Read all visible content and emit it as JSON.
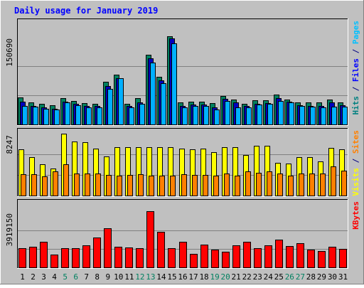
{
  "chart_data": {
    "type": "bar",
    "title": "Daily usage for January 2019",
    "categories": [
      "1",
      "2",
      "3",
      "4",
      "5",
      "6",
      "7",
      "8",
      "9",
      "10",
      "11",
      "12",
      "13",
      "14",
      "15",
      "16",
      "17",
      "18",
      "19",
      "20",
      "21",
      "22",
      "23",
      "24",
      "25",
      "26",
      "27",
      "28",
      "29",
      "30",
      "31"
    ],
    "weekend_days": [
      "5",
      "6",
      "12",
      "13",
      "19",
      "20",
      "26",
      "27"
    ],
    "panels": [
      {
        "id": "hits",
        "max_label": "150690",
        "ymax": 150690,
        "right_label_parts": [
          {
            "text": "Pages",
            "color": "#00c0ff"
          },
          {
            "text": " / ",
            "color": "#000080"
          },
          {
            "text": "Files",
            "color": "#0000ff"
          },
          {
            "text": " / ",
            "color": "#000080"
          },
          {
            "text": "Hits",
            "color": "#008080"
          }
        ],
        "series": [
          {
            "name": "Hits",
            "color": "#008060",
            "values": [
              47000,
              38000,
              36000,
              34000,
              46000,
              41000,
              37000,
              36000,
              73000,
              85000,
              36000,
              46000,
              119000,
              82000,
              151000,
              38000,
              40000,
              40000,
              37000,
              50000,
              44000,
              36000,
              42000,
              42000,
              52000,
              44000,
              39000,
              39000,
              38000,
              43000,
              38000
            ]
          },
          {
            "name": "Files",
            "color": "#0000c0",
            "values": [
              40000,
              33000,
              30000,
              28000,
              40000,
              36000,
              33000,
              32000,
              66000,
              80000,
              32000,
              39000,
              113000,
              76000,
              147000,
              33000,
              35000,
              35000,
              30000,
              45000,
              38000,
              32000,
              36000,
              37000,
              46000,
              40000,
              34000,
              33000,
              33000,
              38000,
              34000
            ]
          },
          {
            "name": "Pages",
            "color": "#00b0ff",
            "values": [
              32000,
              31000,
              28000,
              26000,
              38000,
              34000,
              30000,
              30000,
              62000,
              79000,
              30000,
              36000,
              106000,
              71000,
              139000,
              30000,
              32000,
              32000,
              27000,
              41000,
              30000,
              30000,
              35000,
              36000,
              41000,
              38000,
              32000,
              31000,
              30000,
              31000,
              31000
            ]
          }
        ]
      },
      {
        "id": "visits",
        "max_label": "8247",
        "ymax": 8247,
        "right_label_parts": [
          {
            "text": "Sites",
            "color": "#ff8000"
          },
          {
            "text": " / ",
            "color": "#000080"
          },
          {
            "text": "Visits",
            "color": "#ffff00"
          }
        ],
        "series": [
          {
            "name": "Visits",
            "color": "#ffff00",
            "values": [
              6100,
              5100,
              4200,
              3600,
              8200,
              7100,
              7000,
              6200,
              5200,
              6400,
              6400,
              6400,
              6400,
              6400,
              6400,
              6200,
              6100,
              6200,
              5700,
              6400,
              6400,
              5400,
              6600,
              6600,
              4400,
              4300,
              5100,
              5100,
              4500,
              6300,
              6100
            ]
          },
          {
            "name": "Sites",
            "color": "#ff8000",
            "values": [
              2900,
              2900,
              2600,
              3200,
              4200,
              3000,
              3000,
              3000,
              2800,
              2700,
              2800,
              2900,
              2700,
              2700,
              2700,
              2900,
              2800,
              2800,
              2700,
              3000,
              2700,
              3200,
              3100,
              3200,
              3000,
              2700,
              3000,
              3000,
              3000,
              3900,
              3300
            ]
          }
        ]
      },
      {
        "id": "kbytes",
        "max_label": "3919150",
        "ymax": 3919150,
        "right_label_parts": [
          {
            "text": "KBytes",
            "color": "#ff0000"
          }
        ],
        "series": [
          {
            "name": "KBytes",
            "color": "#ff0000",
            "values": [
              1380000,
              1450000,
              1800000,
              920000,
              1360000,
              1370000,
              1550000,
              2100000,
              2750000,
              1450000,
              1420000,
              1380000,
              3919150,
              2500000,
              1380000,
              1790000,
              970000,
              1640000,
              1280000,
              1120000,
              1560000,
              1800000,
              1360000,
              1570000,
              1940000,
              1530000,
              1700000,
              1260000,
              1180000,
              1450000,
              1300000
            ]
          }
        ]
      }
    ]
  }
}
